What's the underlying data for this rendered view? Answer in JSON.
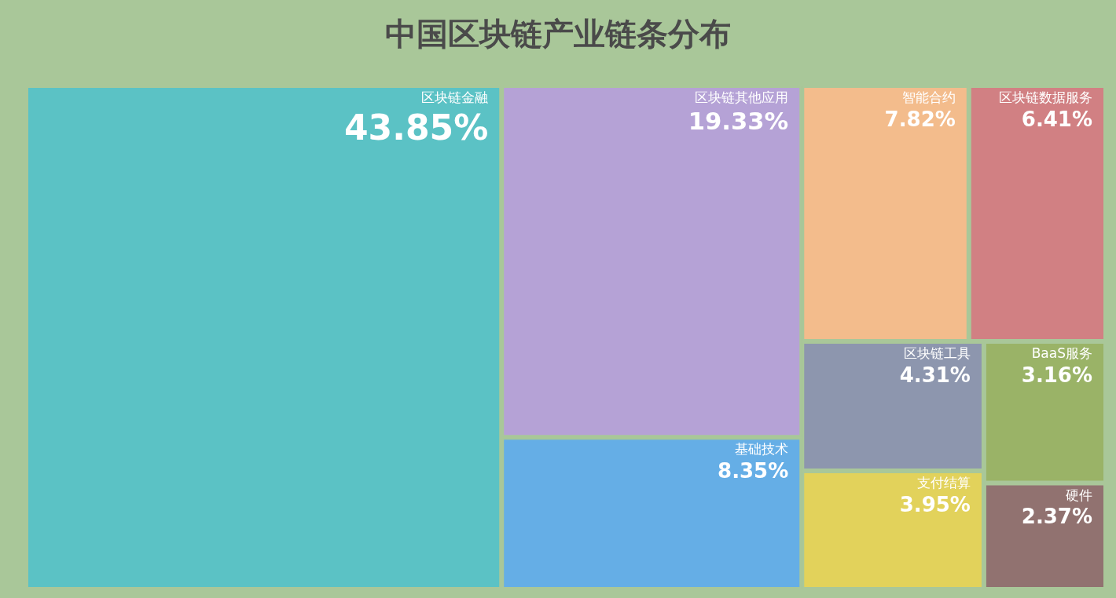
{
  "chart_data": {
    "type": "other",
    "title": "中国区块链产业链条分布",
    "categories": [
      "区块链金融",
      "区块链其他应用",
      "基础技术",
      "智能合约",
      "区块链数据服务",
      "区块链工具",
      "支付结算",
      "BaaS服务",
      "硬件"
    ],
    "values": [
      43.85,
      19.33,
      8.35,
      7.82,
      6.41,
      4.31,
      3.95,
      3.16,
      2.37
    ],
    "value_labels": [
      "43.85%",
      "19.33%",
      "8.35%",
      "7.82%",
      "6.41%",
      "4.31%",
      "3.95%",
      "3.16%",
      "2.37%"
    ],
    "colors": [
      "#5bc2c5",
      "#b5a2d6",
      "#65aee6",
      "#f3bc8c",
      "#d18083",
      "#8d96ae",
      "#e2d25b",
      "#9ab367",
      "#917270"
    ]
  }
}
